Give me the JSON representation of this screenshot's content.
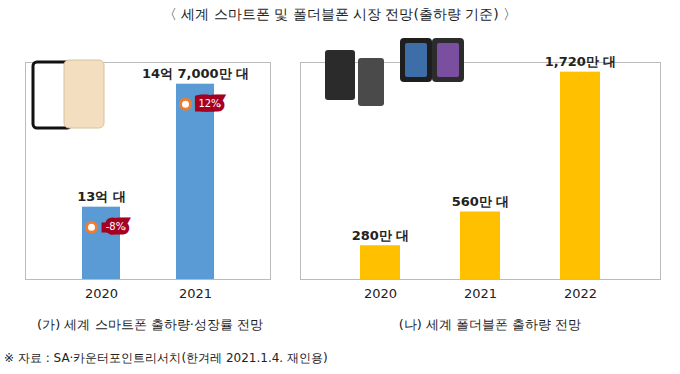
{
  "title": "〈 세계 스마트폰 및 폴더블폰 시장 전망(출하량 기준) 〉",
  "source": "※ 자료 : SA·카운터포인트리서치(한겨레 2021.1.4. 재인용)",
  "chart_data": [
    {
      "type": "bar",
      "title": "(가) 세계 스마트폰 출하량·성장률 전망",
      "categories": [
        "2020",
        "2021"
      ],
      "values": [
        1300000000,
        1470000000
      ],
      "value_labels": [
        "13억 대",
        "14억 7,000만 대"
      ],
      "growth": [
        -8,
        12
      ],
      "growth_labels": [
        "-8%",
        "12%"
      ],
      "color": "#5b9bd5",
      "ylim": [
        1200000000,
        1500000000
      ],
      "yticks": [],
      "tick_labels": "x",
      "data_labels": true
    },
    {
      "type": "bar",
      "title": "(나) 세계 폴더블폰 출하량 전망",
      "categories": [
        "2020",
        "2021",
        "2022"
      ],
      "values": [
        2800000,
        5600000,
        17200000
      ],
      "value_labels": [
        "280만 대",
        "560만 대",
        "1,720만 대"
      ],
      "color": "#ffc000",
      "ylim": [
        0,
        18000000
      ],
      "yticks": [],
      "tick_labels": "x",
      "data_labels": true
    }
  ]
}
